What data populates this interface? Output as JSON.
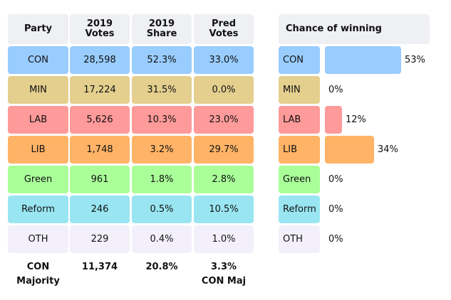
{
  "table": {
    "headers": [
      "Party",
      "2019\nVotes",
      "2019\nShare",
      "Pred\nVotes"
    ],
    "header_lines": [
      [
        "Party"
      ],
      [
        "2019",
        "Votes"
      ],
      [
        "2019",
        "Share"
      ],
      [
        "Pred",
        "Votes"
      ]
    ],
    "rows": [
      {
        "party": "CON",
        "votes": "28,598",
        "share": "52.3%",
        "pred": "33.0%",
        "color": "#99ccff"
      },
      {
        "party": "MIN",
        "votes": "17,224",
        "share": "31.5%",
        "pred": "0.0%",
        "color": "#e4cf8e"
      },
      {
        "party": "LAB",
        "votes": "5,626",
        "share": "10.3%",
        "pred": "23.0%",
        "color": "#ff9a9a"
      },
      {
        "party": "LIB",
        "votes": "1,748",
        "share": "3.2%",
        "pred": "29.7%",
        "color": "#ffb366"
      },
      {
        "party": "Green",
        "votes": "961",
        "share": "1.8%",
        "pred": "2.8%",
        "color": "#aaff99"
      },
      {
        "party": "Reform",
        "votes": "246",
        "share": "0.5%",
        "pred": "10.5%",
        "color": "#99e6f2"
      },
      {
        "party": "OTH",
        "votes": "229",
        "share": "0.4%",
        "pred": "1.0%",
        "color": "#f3f0fb"
      }
    ],
    "footer": {
      "majority_label_1": "CON",
      "majority_label_2": "Majority",
      "votes": "11,374",
      "share": "20.8%",
      "pred_1": "3.3%",
      "pred_2": "CON Maj"
    }
  },
  "chart_data": {
    "type": "bar",
    "title": "Chance of winning",
    "categories": [
      "CON",
      "MIN",
      "LAB",
      "LIB",
      "Green",
      "Reform",
      "OTH"
    ],
    "values": [
      53,
      0,
      12,
      34,
      0,
      0,
      0
    ],
    "value_labels": [
      "53%",
      "0%",
      "12%",
      "34%",
      "0%",
      "0%",
      "0%"
    ],
    "colors": [
      "#99ccff",
      "#e4cf8e",
      "#ff9a9a",
      "#ffb366",
      "#aaff99",
      "#99e6f2",
      "#f3f0fb"
    ],
    "xlim": [
      0,
      100
    ],
    "orientation": "horizontal"
  }
}
